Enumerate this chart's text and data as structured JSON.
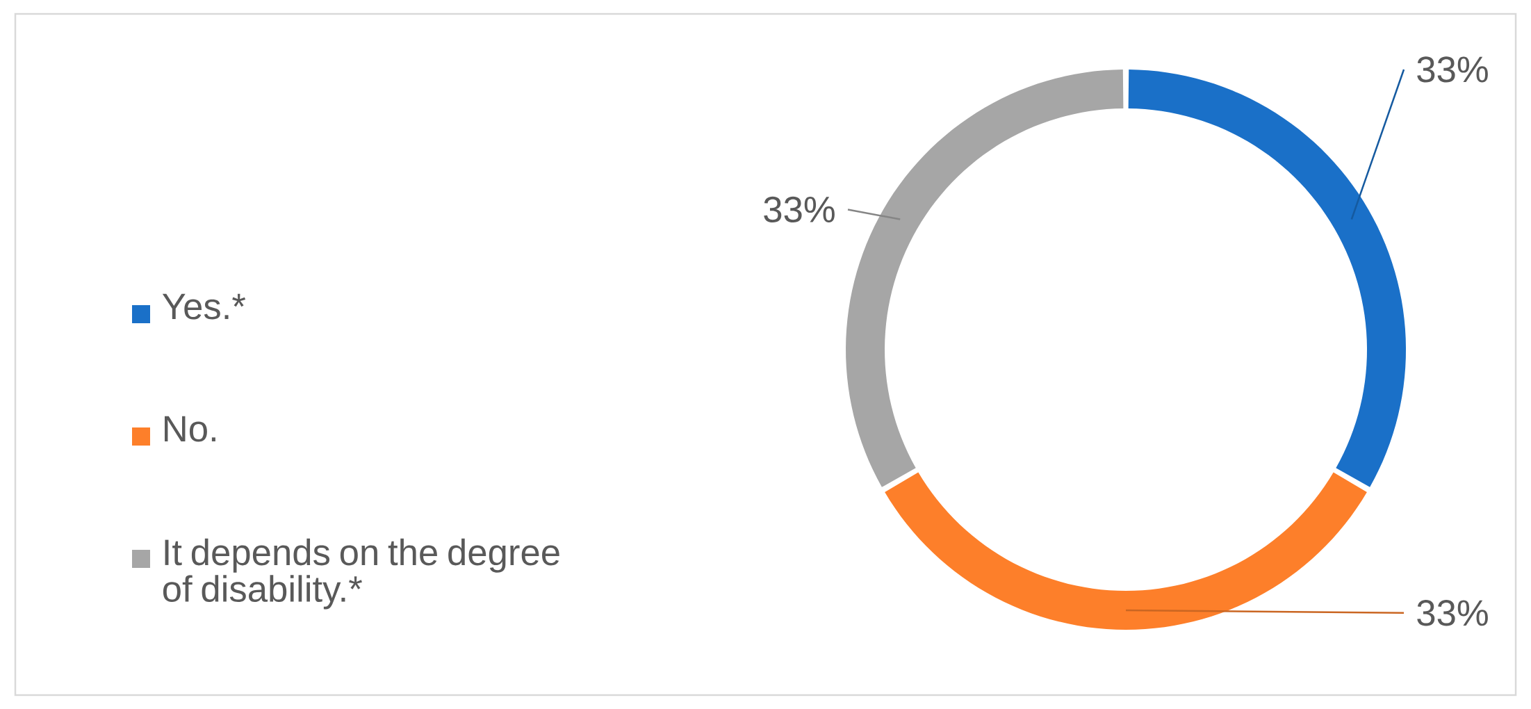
{
  "chart_data": {
    "type": "donut",
    "categories": [
      "Yes.*",
      "No.",
      "It depends on the degree of disability.*"
    ],
    "values": [
      33,
      33,
      33
    ],
    "value_labels": [
      "33%",
      "33%",
      "33%"
    ],
    "colors": [
      "#1a70c8",
      "#fd7f2a",
      "#a6a6a6"
    ],
    "legend": "left"
  }
}
